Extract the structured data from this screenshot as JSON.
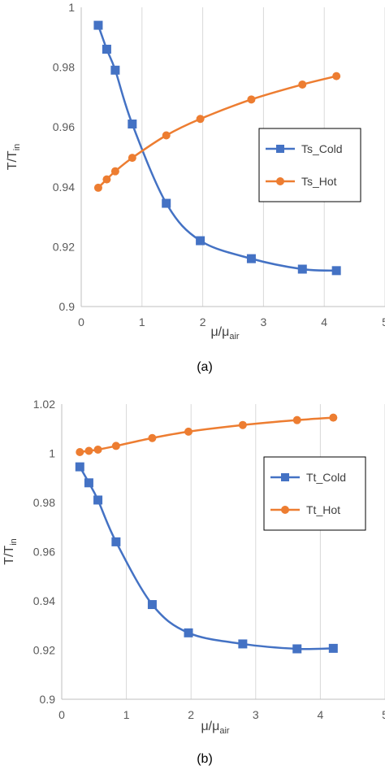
{
  "chart_data": [
    {
      "type": "line",
      "caption": "(a)",
      "xlabel": {
        "main": "μ/μ",
        "sub": "air"
      },
      "ylabel": {
        "main": "T/T",
        "sub": "in"
      },
      "xlim": [
        0,
        5
      ],
      "ylim": [
        0.9,
        1.0
      ],
      "xticks": [
        0,
        1,
        2,
        3,
        4,
        5
      ],
      "yticks": [
        0.9,
        0.92,
        0.94,
        0.96,
        0.98,
        1.0
      ],
      "ytick_labels": [
        "0.9",
        "0.92",
        "0.94",
        "0.96",
        "0.98",
        "1"
      ],
      "xtick_labels": [
        "0",
        "1",
        "2",
        "3",
        "4",
        "5"
      ],
      "grid": "vertical",
      "legend_position": "right",
      "series": [
        {
          "name": "Ts_Cold",
          "color": "#4472C4",
          "marker": "square",
          "x": [
            0.28,
            0.42,
            0.56,
            0.84,
            1.4,
            1.96,
            2.8,
            3.64,
            4.2
          ],
          "y": [
            0.994,
            0.986,
            0.979,
            0.961,
            0.9345,
            0.922,
            0.916,
            0.9125,
            0.912
          ]
        },
        {
          "name": "Ts_Hot",
          "color": "#ED7D31",
          "marker": "circle",
          "x": [
            0.28,
            0.42,
            0.56,
            0.84,
            1.4,
            1.96,
            2.8,
            3.64,
            4.2
          ],
          "y": [
            0.9397,
            0.9425,
            0.9452,
            0.9497,
            0.9572,
            0.9627,
            0.9692,
            0.9742,
            0.977
          ]
        }
      ]
    },
    {
      "type": "line",
      "caption": "(b)",
      "xlabel": {
        "main": "μ/μ",
        "sub": "air"
      },
      "ylabel": {
        "main": "T/T",
        "sub": "in"
      },
      "xlim": [
        0,
        5
      ],
      "ylim": [
        0.9,
        1.02
      ],
      "xticks": [
        0,
        1,
        2,
        3,
        4,
        5
      ],
      "yticks": [
        0.9,
        0.92,
        0.94,
        0.96,
        0.98,
        1.0,
        1.02
      ],
      "ytick_labels": [
        "0.9",
        "0.92",
        "0.94",
        "0.96",
        "0.98",
        "1",
        "1.02"
      ],
      "xtick_labels": [
        "0",
        "1",
        "2",
        "3",
        "4",
        "5"
      ],
      "grid": "vertical",
      "legend_position": "right",
      "series": [
        {
          "name": "Tt_Cold",
          "color": "#4472C4",
          "marker": "square",
          "x": [
            0.28,
            0.42,
            0.56,
            0.84,
            1.4,
            1.96,
            2.8,
            3.64,
            4.2
          ],
          "y": [
            0.9945,
            0.988,
            0.981,
            0.964,
            0.9385,
            0.927,
            0.9225,
            0.9205,
            0.9207
          ]
        },
        {
          "name": "Tt_Hot",
          "color": "#ED7D31",
          "marker": "circle",
          "x": [
            0.28,
            0.42,
            0.56,
            0.84,
            1.4,
            1.96,
            2.8,
            3.64,
            4.2
          ],
          "y": [
            1.0005,
            1.001,
            1.0015,
            1.003,
            1.0062,
            1.0088,
            1.0115,
            1.0135,
            1.0145
          ]
        }
      ]
    }
  ]
}
